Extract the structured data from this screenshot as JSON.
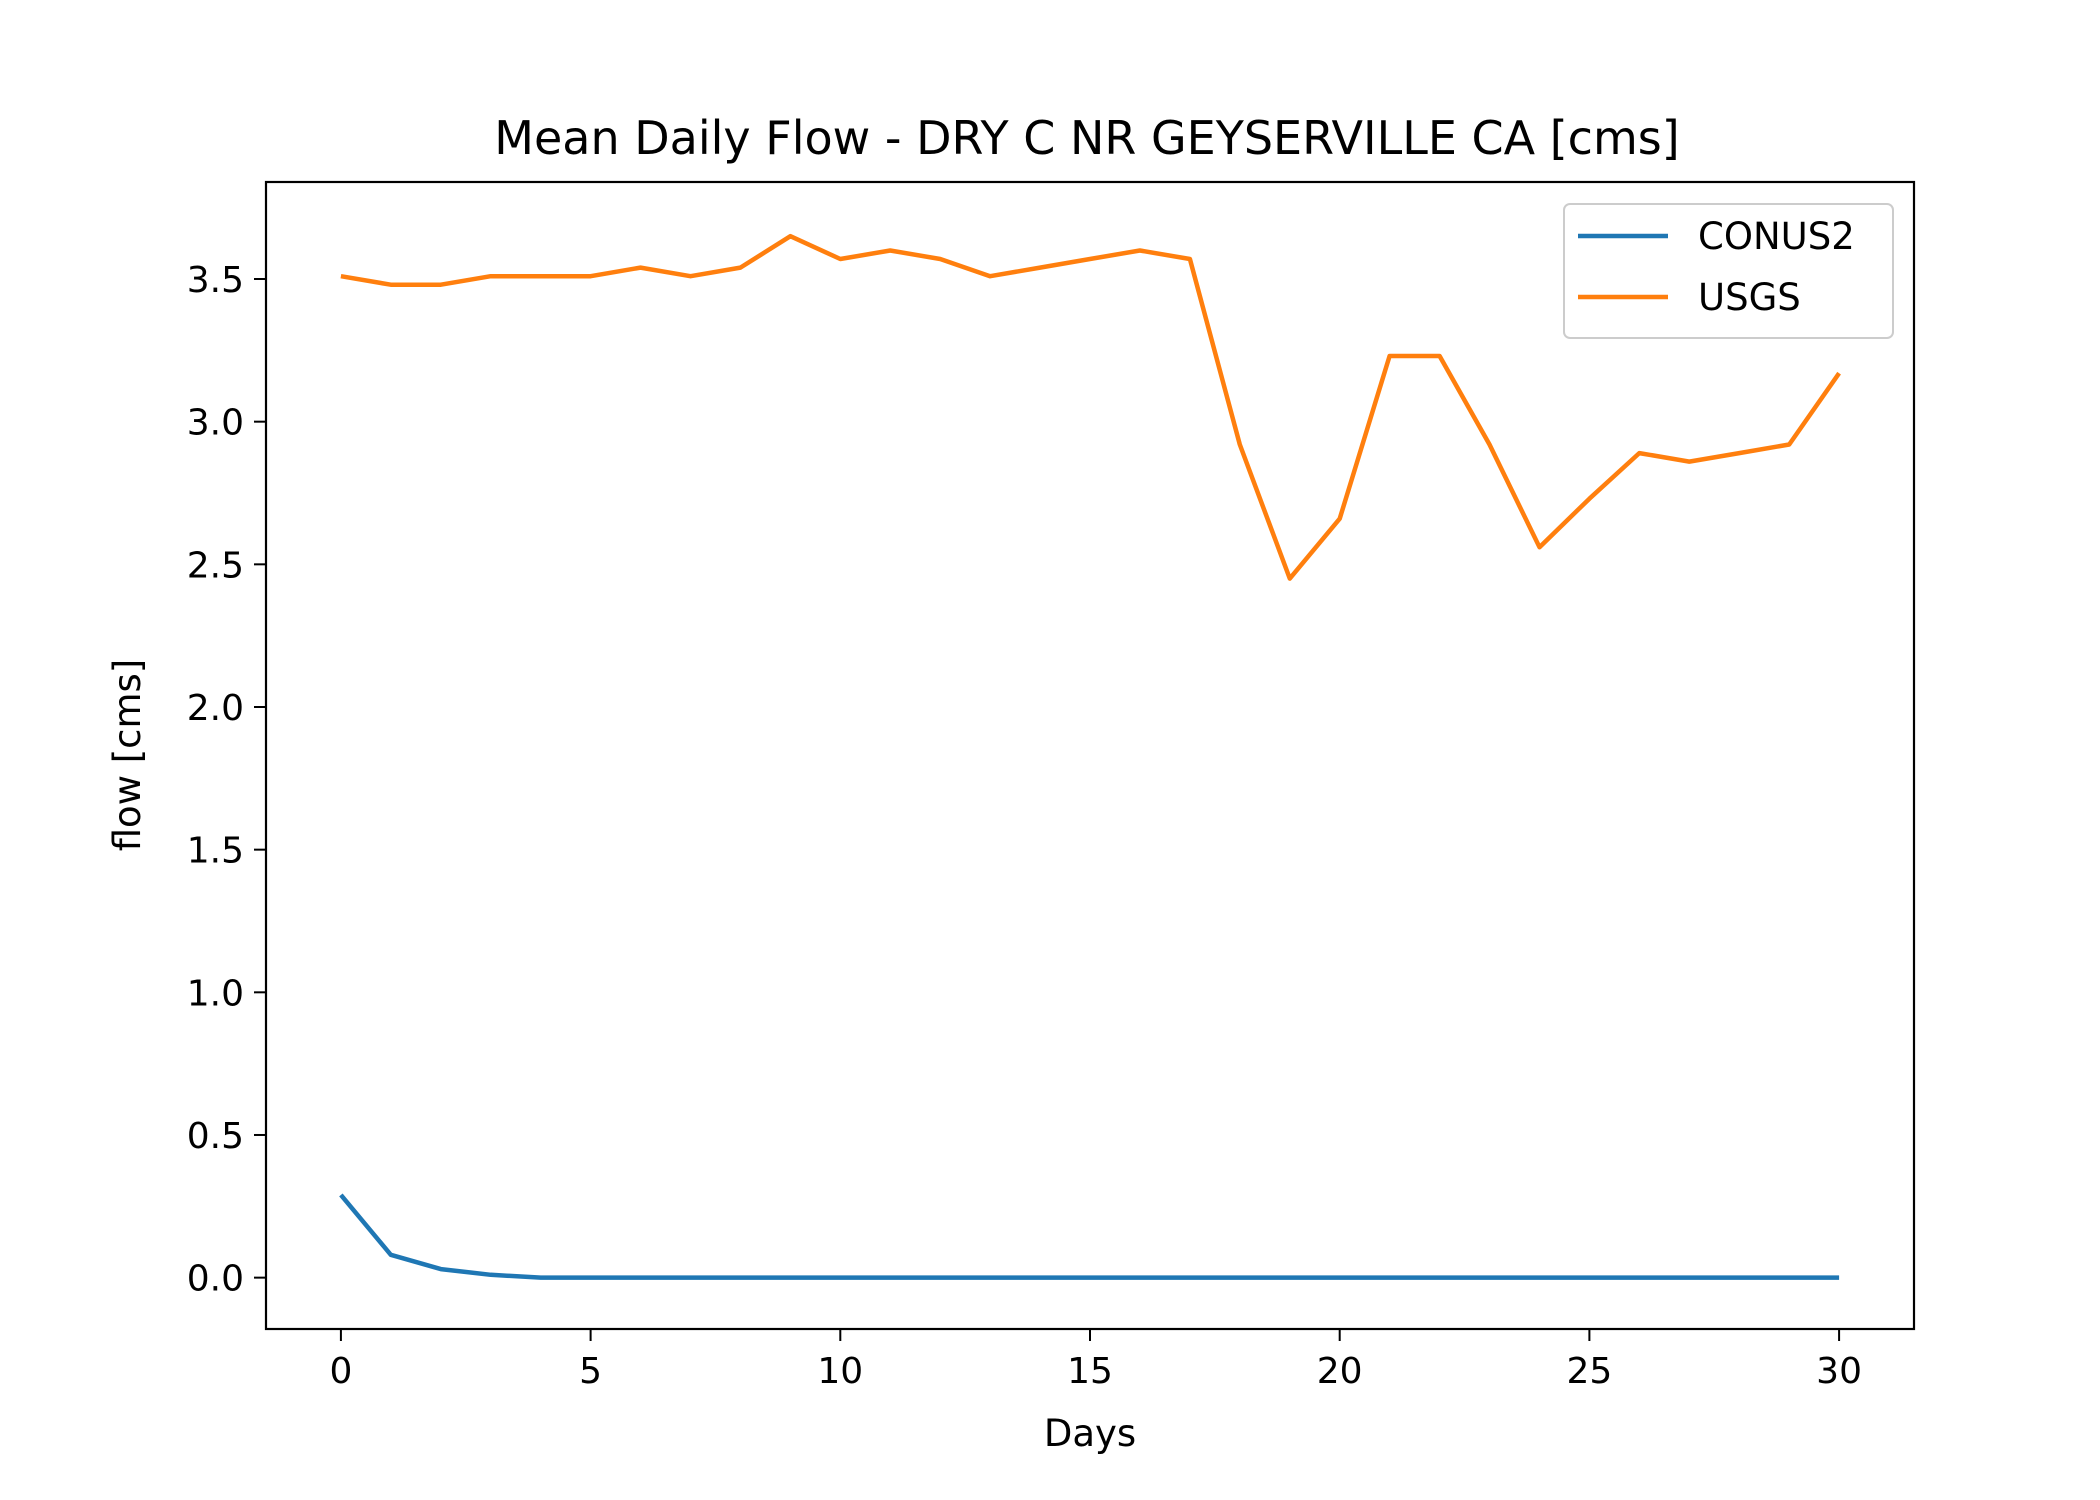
{
  "chart_data": {
    "type": "line",
    "title": "Mean Daily Flow - DRY C NR GEYSERVILLE CA [cms]",
    "xlabel": "Days",
    "ylabel": "flow [cms]",
    "xlim": [
      -1.5,
      31.5
    ],
    "ylim": [
      -0.18,
      3.84
    ],
    "xticks": [
      0,
      5,
      10,
      15,
      20,
      25,
      30
    ],
    "xtick_labels": [
      "0",
      "5",
      "10",
      "15",
      "20",
      "25",
      "30"
    ],
    "yticks": [
      0.0,
      0.5,
      1.0,
      1.5,
      2.0,
      2.5,
      3.0,
      3.5
    ],
    "ytick_labels": [
      "0.0",
      "0.5",
      "1.0",
      "1.5",
      "2.0",
      "2.5",
      "3.0",
      "3.5"
    ],
    "grid": false,
    "legend_position": "top-right",
    "x": [
      0,
      1,
      2,
      3,
      4,
      5,
      6,
      7,
      8,
      9,
      10,
      11,
      12,
      13,
      14,
      15,
      16,
      17,
      18,
      19,
      20,
      21,
      22,
      23,
      24,
      25,
      26,
      27,
      28,
      29,
      30
    ],
    "series": [
      {
        "name": "CONUS2",
        "color": "#1f77b4",
        "values": [
          0.29,
          0.08,
          0.03,
          0.01,
          0,
          0,
          0,
          0,
          0,
          0,
          0,
          0,
          0,
          0,
          0,
          0,
          0,
          0,
          0,
          0,
          0,
          0,
          0,
          0,
          0,
          0,
          0,
          0,
          0,
          0,
          0
        ]
      },
      {
        "name": "USGS",
        "color": "#ff7f0e",
        "values": [
          3.51,
          3.48,
          3.48,
          3.51,
          3.51,
          3.51,
          3.54,
          3.51,
          3.54,
          3.65,
          3.57,
          3.6,
          3.57,
          3.51,
          3.54,
          3.57,
          3.6,
          3.57,
          2.92,
          2.45,
          2.66,
          3.23,
          3.23,
          2.92,
          2.56,
          2.73,
          2.89,
          2.86,
          2.89,
          2.92,
          3.17
        ]
      }
    ]
  }
}
